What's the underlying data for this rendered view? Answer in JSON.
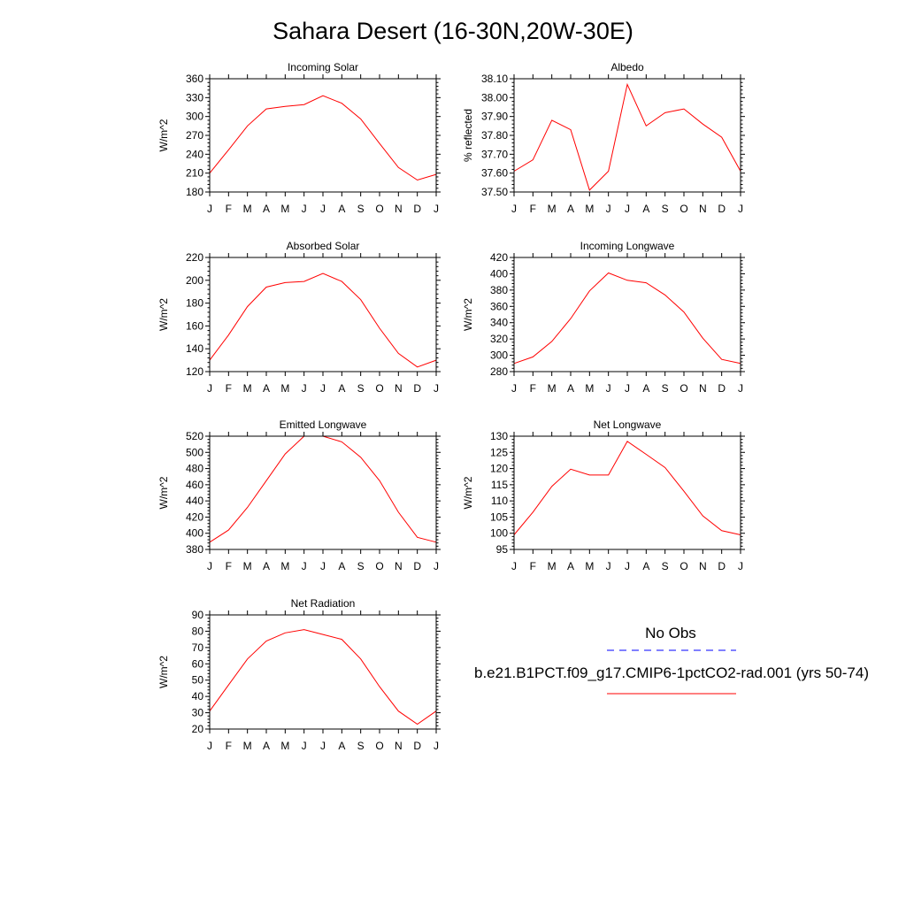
{
  "page_title": "Sahara Desert (16-30N,20W-30E)",
  "legend": {
    "obs_label": "No Obs",
    "obs_color": "#0000ff",
    "model_label": "b.e21.B1PCT.f09_g17.CMIP6-1pctCO2-rad.001 (yrs 50-74)",
    "model_color": "#ff0000"
  },
  "chart_data": [
    {
      "type": "line",
      "title": "Incoming Solar",
      "ylabel": "W/m^2",
      "categories": [
        "J",
        "F",
        "M",
        "A",
        "M",
        "J",
        "J",
        "A",
        "S",
        "O",
        "N",
        "D",
        "J"
      ],
      "ylim": [
        180,
        360
      ],
      "yticks": [
        "180",
        "210",
        "240",
        "270",
        "300",
        "330",
        "360"
      ],
      "series": [
        {
          "values": [
            210,
            247,
            285,
            312,
            316,
            319,
            333,
            321,
            296,
            257,
            219,
            199,
            208
          ],
          "color": "#ff0000"
        }
      ]
    },
    {
      "type": "line",
      "title": "Albedo",
      "ylabel": "% reflected",
      "categories": [
        "J",
        "F",
        "M",
        "A",
        "M",
        "J",
        "J",
        "A",
        "S",
        "O",
        "N",
        "D",
        "J"
      ],
      "ylim": [
        37.5,
        38.1
      ],
      "yticks": [
        "37.50",
        "37.60",
        "37.70",
        "37.80",
        "37.90",
        "38.00",
        "38.10"
      ],
      "series": [
        {
          "values": [
            37.61,
            37.67,
            37.88,
            37.83,
            37.51,
            37.61,
            38.07,
            37.85,
            37.92,
            37.94,
            37.86,
            37.79,
            37.61
          ],
          "color": "#ff0000"
        }
      ]
    },
    {
      "type": "line",
      "title": "Absorbed Solar",
      "ylabel": "W/m^2",
      "categories": [
        "J",
        "F",
        "M",
        "A",
        "M",
        "J",
        "J",
        "A",
        "S",
        "O",
        "N",
        "D",
        "J"
      ],
      "ylim": [
        120,
        220
      ],
      "yticks": [
        "120",
        "140",
        "160",
        "180",
        "200",
        "220"
      ],
      "series": [
        {
          "values": [
            130,
            152,
            177,
            194,
            198,
            199,
            206,
            199,
            183,
            158,
            136,
            124,
            130
          ],
          "color": "#ff0000"
        }
      ]
    },
    {
      "type": "line",
      "title": "Incoming Longwave",
      "ylabel": "W/m^2",
      "categories": [
        "J",
        "F",
        "M",
        "A",
        "M",
        "J",
        "J",
        "A",
        "S",
        "O",
        "N",
        "D",
        "J"
      ],
      "ylim": [
        280,
        420
      ],
      "yticks": [
        "280",
        "300",
        "320",
        "340",
        "360",
        "380",
        "400",
        "420"
      ],
      "series": [
        {
          "values": [
            290,
            298,
            317,
            345,
            379,
            401,
            392,
            389,
            374,
            353,
            321,
            295,
            290
          ],
          "color": "#ff0000"
        }
      ]
    },
    {
      "type": "line",
      "title": "Emitted Longwave",
      "ylabel": "W/m^2",
      "categories": [
        "J",
        "F",
        "M",
        "A",
        "M",
        "J",
        "J",
        "A",
        "S",
        "O",
        "N",
        "D",
        "J"
      ],
      "ylim": [
        380,
        520
      ],
      "yticks": [
        "380",
        "400",
        "420",
        "440",
        "460",
        "480",
        "500",
        "520"
      ],
      "series": [
        {
          "values": [
            389,
            404,
            432,
            465,
            498,
            520,
            520,
            513,
            494,
            465,
            426,
            395,
            389
          ],
          "color": "#ff0000"
        }
      ]
    },
    {
      "type": "line",
      "title": "Net Longwave",
      "ylabel": "W/m^2",
      "categories": [
        "J",
        "F",
        "M",
        "A",
        "M",
        "J",
        "J",
        "A",
        "S",
        "O",
        "N",
        "D",
        "J"
      ],
      "ylim": [
        95,
        130
      ],
      "yticks": [
        "95",
        "100",
        "105",
        "110",
        "115",
        "120",
        "125",
        "130"
      ],
      "series": [
        {
          "values": [
            99.5,
            106.5,
            114.5,
            119.8,
            118.0,
            118.0,
            128.4,
            124.4,
            120.3,
            113.0,
            105.4,
            100.8,
            99.5
          ],
          "color": "#ff0000"
        }
      ]
    },
    {
      "type": "line",
      "title": "Net Radiation",
      "ylabel": "W/m^2",
      "categories": [
        "J",
        "F",
        "M",
        "A",
        "M",
        "J",
        "J",
        "A",
        "S",
        "O",
        "N",
        "D",
        "J"
      ],
      "ylim": [
        20,
        90
      ],
      "yticks": [
        "20",
        "30",
        "40",
        "50",
        "60",
        "70",
        "80",
        "90"
      ],
      "series": [
        {
          "values": [
            31,
            47,
            63,
            74,
            79,
            81,
            78,
            75,
            63,
            46,
            31,
            23,
            31
          ],
          "color": "#ff0000"
        }
      ]
    }
  ]
}
